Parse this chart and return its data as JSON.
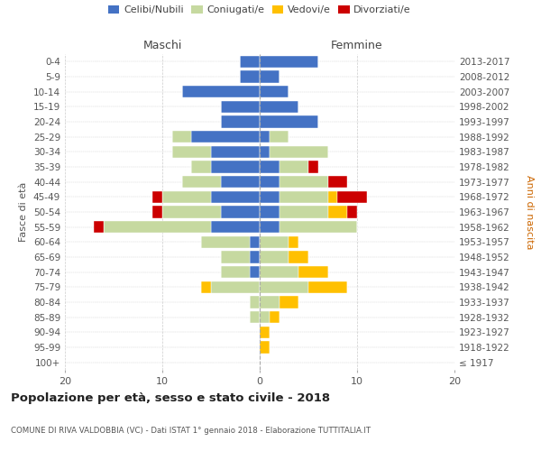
{
  "age_groups": [
    "100+",
    "95-99",
    "90-94",
    "85-89",
    "80-84",
    "75-79",
    "70-74",
    "65-69",
    "60-64",
    "55-59",
    "50-54",
    "45-49",
    "40-44",
    "35-39",
    "30-34",
    "25-29",
    "20-24",
    "15-19",
    "10-14",
    "5-9",
    "0-4"
  ],
  "birth_years": [
    "≤ 1917",
    "1918-1922",
    "1923-1927",
    "1928-1932",
    "1933-1937",
    "1938-1942",
    "1943-1947",
    "1948-1952",
    "1953-1957",
    "1958-1962",
    "1963-1967",
    "1968-1972",
    "1973-1977",
    "1978-1982",
    "1983-1987",
    "1988-1992",
    "1993-1997",
    "1998-2002",
    "2003-2007",
    "2008-2012",
    "2013-2017"
  ],
  "maschi": {
    "celibi": [
      0,
      0,
      0,
      0,
      0,
      0,
      1,
      1,
      1,
      5,
      4,
      5,
      4,
      5,
      5,
      7,
      4,
      4,
      8,
      2,
      2
    ],
    "coniugati": [
      0,
      0,
      0,
      1,
      1,
      5,
      3,
      3,
      5,
      11,
      6,
      5,
      4,
      2,
      4,
      2,
      0,
      0,
      0,
      0,
      0
    ],
    "vedovi": [
      0,
      0,
      0,
      0,
      0,
      1,
      0,
      0,
      0,
      0,
      0,
      0,
      0,
      0,
      0,
      0,
      0,
      0,
      0,
      0,
      0
    ],
    "divorziati": [
      0,
      0,
      0,
      0,
      0,
      0,
      0,
      0,
      0,
      1,
      1,
      1,
      0,
      0,
      0,
      0,
      0,
      0,
      0,
      0,
      0
    ]
  },
  "femmine": {
    "nubili": [
      0,
      0,
      0,
      0,
      0,
      0,
      0,
      0,
      0,
      2,
      2,
      2,
      2,
      2,
      1,
      1,
      6,
      4,
      3,
      2,
      6
    ],
    "coniugate": [
      0,
      0,
      0,
      1,
      2,
      5,
      4,
      3,
      3,
      8,
      5,
      5,
      5,
      3,
      6,
      2,
      0,
      0,
      0,
      0,
      0
    ],
    "vedove": [
      0,
      1,
      1,
      1,
      2,
      4,
      3,
      2,
      1,
      0,
      2,
      1,
      0,
      0,
      0,
      0,
      0,
      0,
      0,
      0,
      0
    ],
    "divorziate": [
      0,
      0,
      0,
      0,
      0,
      0,
      0,
      0,
      0,
      0,
      1,
      3,
      2,
      1,
      0,
      0,
      0,
      0,
      0,
      0,
      0
    ]
  },
  "colors": {
    "celibi": "#4472c4",
    "coniugati": "#c6d9a0",
    "vedovi": "#ffc000",
    "divorziati": "#cc0000"
  },
  "xlim": 20,
  "title": "Popolazione per età, sesso e stato civile - 2018",
  "subtitle": "COMUNE DI RIVA VALDOBBIA (VC) - Dati ISTAT 1° gennaio 2018 - Elaborazione TUTTITALIA.IT",
  "ylabel_left": "Fasce di età",
  "ylabel_right": "Anni di nascita",
  "xlabel_maschi": "Maschi",
  "xlabel_femmine": "Femmine",
  "bg_color": "#ffffff",
  "grid_color": "#cccccc",
  "legend_labels": [
    "Celibi/Nubili",
    "Coniugati/e",
    "Vedovi/e",
    "Divorziati/e"
  ]
}
